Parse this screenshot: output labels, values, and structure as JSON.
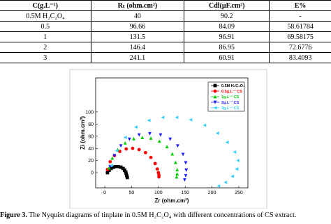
{
  "table": {
    "headers": [
      "C(g.L⁻¹)",
      "Rₜ (ohm.cm²)",
      "Cdl(µF.cm²)",
      "E%"
    ],
    "rows": [
      [
        "0.5M H₂C₂O₄",
        "40",
        "90.2",
        "-"
      ],
      [
        "0.5",
        "96.66",
        "84.09",
        "58.61784"
      ],
      [
        "1",
        "131.5",
        "96.91",
        "69.58175"
      ],
      [
        "2",
        "146.4",
        "86.95",
        "72.6776"
      ],
      [
        "3",
        "241.1",
        "60.91",
        "83.4093"
      ]
    ]
  },
  "chart_data": {
    "type": "scatter",
    "x_label": "Zr (ohm.cm²)",
    "y_label": "Zi (ohm.cm²)",
    "xlim": [
      -17,
      267
    ],
    "ylim": [
      -25,
      156
    ],
    "xticks": [
      0,
      50,
      100,
      150,
      200,
      250
    ],
    "yticks": [
      0,
      20,
      40,
      60,
      80,
      100
    ],
    "series": [
      {
        "name": "0.5M H₂C₂O₄",
        "color": "#000000",
        "marker": "square",
        "x": [
          5,
          8,
          12,
          16,
          20,
          25,
          30,
          34,
          37,
          39,
          40,
          41,
          42
        ],
        "y": [
          0,
          4,
          7,
          9,
          10,
          10,
          9,
          7,
          4,
          1,
          -2,
          -5,
          -8
        ]
      },
      {
        "name": "0.5g.L⁻¹ CS",
        "color": "#ff0000",
        "marker": "circle",
        "x": [
          5,
          10,
          18,
          28,
          40,
          52,
          64,
          76,
          86,
          94,
          98,
          100,
          101,
          101
        ],
        "y": [
          5,
          18,
          28,
          35,
          39,
          40,
          38,
          33,
          25,
          15,
          6,
          0,
          -4,
          -7
        ]
      },
      {
        "name": "1g.L⁻¹ CS",
        "color": "#00cc00",
        "marker": "triangle-up",
        "x": [
          8,
          14,
          24,
          38,
          54,
          70,
          86,
          102,
          116,
          126,
          132,
          135,
          135,
          134
        ],
        "y": [
          8,
          24,
          38,
          49,
          56,
          58,
          57,
          52,
          43,
          31,
          17,
          5,
          -2,
          -7
        ]
      },
      {
        "name": "2g.L⁻¹ CS",
        "color": "#1a1aff",
        "marker": "triangle-down",
        "x": [
          10,
          18,
          30,
          46,
          64,
          84,
          104,
          122,
          136,
          146,
          151,
          152,
          151,
          149
        ],
        "y": [
          10,
          28,
          44,
          55,
          62,
          64,
          62,
          55,
          44,
          30,
          16,
          4,
          -5,
          -12
        ]
      },
      {
        "name": "3g.L⁻¹ CS",
        "color": "#33ccff",
        "marker": "triangle-left",
        "x": [
          12,
          22,
          38,
          58,
          82,
          108,
          134,
          160,
          186,
          210,
          228,
          242,
          248,
          246,
          238,
          225,
          212
        ],
        "y": [
          12,
          36,
          58,
          75,
          86,
          91,
          91,
          87,
          78,
          65,
          50,
          34,
          20,
          6,
          -6,
          -16,
          -22
        ]
      }
    ]
  },
  "caption": {
    "label": "Figure 3.",
    "text": " The Nyquist diagrams of tinplate in 0.5M H₂C₂O₄ with different concentrations of CS extract."
  }
}
